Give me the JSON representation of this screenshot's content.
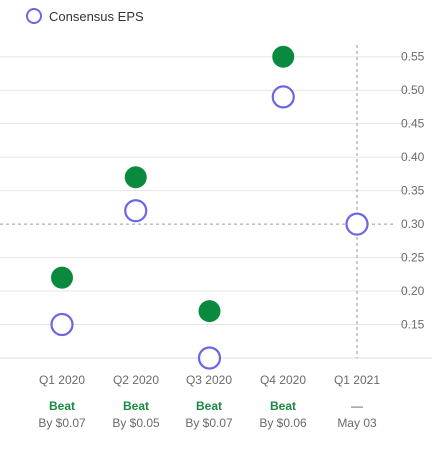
{
  "legend": {
    "consensus_label": "Consensus EPS"
  },
  "colors": {
    "actual": "#0a8a3e",
    "consensus": "#6b66e8",
    "beat": "#1a8a43",
    "grid": "#e6e6e6",
    "axis_text": "#6a6a6a"
  },
  "quarters": [
    {
      "label": "Q1 2020",
      "result": "Beat",
      "detail": "By $0.07"
    },
    {
      "label": "Q2 2020",
      "result": "Beat",
      "detail": "By $0.05"
    },
    {
      "label": "Q3 2020",
      "result": "Beat",
      "detail": "By $0.07"
    },
    {
      "label": "Q4 2020",
      "result": "Beat",
      "detail": "By $0.06"
    },
    {
      "label": "Q1 2021",
      "result": "—",
      "detail": "May 03"
    }
  ],
  "chart_data": {
    "type": "scatter",
    "title": "",
    "xlabel": "",
    "ylabel": "",
    "categories": [
      "Q1 2020",
      "Q2 2020",
      "Q3 2020",
      "Q4 2020",
      "Q1 2021"
    ],
    "ylim": [
      0.1,
      0.575
    ],
    "yticks": [
      "0.15",
      "0.20",
      "0.25",
      "0.30",
      "0.35",
      "0.40",
      "0.45",
      "0.50",
      "0.55"
    ],
    "series": [
      {
        "name": "",
        "marker": "filled",
        "values": [
          0.22,
          0.37,
          0.17,
          0.55,
          null
        ]
      },
      {
        "name": "Consensus EPS",
        "marker": "hollow",
        "values": [
          0.15,
          0.32,
          0.1,
          0.49,
          0.3
        ]
      }
    ],
    "reference_line_y": 0.3,
    "current_marker_category": "Q1 2021",
    "legend_position": "top-left",
    "grid": true
  }
}
